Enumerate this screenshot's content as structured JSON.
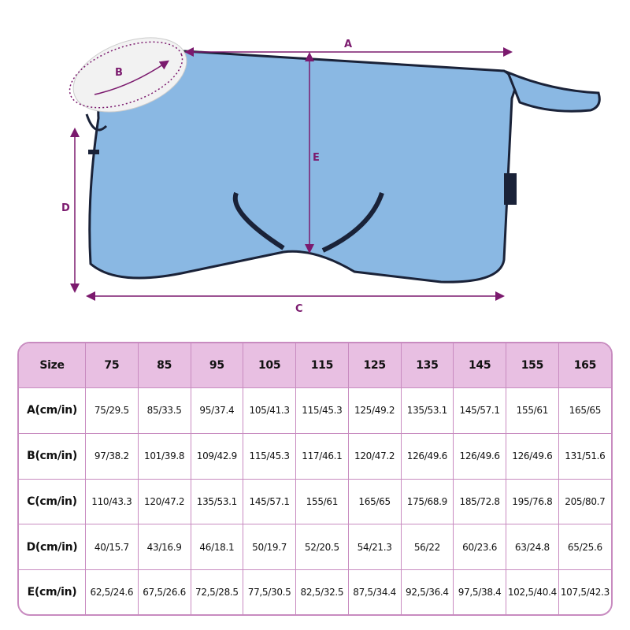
{
  "diagram": {
    "labels": {
      "a": "A",
      "b": "B",
      "c": "C",
      "d": "D",
      "e": "E"
    },
    "colors": {
      "blanket": "#8ab8e3",
      "trim": "#1a2238",
      "fleece": "#f2f2f2",
      "arrow": "#7b1a6e"
    }
  },
  "table": {
    "header": [
      "Size",
      "75",
      "85",
      "95",
      "105",
      "115",
      "125",
      "135",
      "145",
      "155",
      "165"
    ],
    "rows": [
      {
        "label": "A(cm/in)",
        "cells": [
          "75/29.5",
          "85/33.5",
          "95/37.4",
          "105/41.3",
          "115/45.3",
          "125/49.2",
          "135/53.1",
          "145/57.1",
          "155/61",
          "165/65"
        ]
      },
      {
        "label": "B(cm/in)",
        "cells": [
          "97/38.2",
          "101/39.8",
          "109/42.9",
          "115/45.3",
          "117/46.1",
          "120/47.2",
          "126/49.6",
          "126/49.6",
          "126/49.6",
          "131/51.6"
        ]
      },
      {
        "label": "C(cm/in)",
        "cells": [
          "110/43.3",
          "120/47.2",
          "135/53.1",
          "145/57.1",
          "155/61",
          "165/65",
          "175/68.9",
          "185/72.8",
          "195/76.8",
          "205/80.7"
        ]
      },
      {
        "label": "D(cm/in)",
        "cells": [
          "40/15.7",
          "43/16.9",
          "46/18.1",
          "50/19.7",
          "52/20.5",
          "54/21.3",
          "56/22",
          "60/23.6",
          "63/24.8",
          "65/25.6"
        ]
      },
      {
        "label": "E(cm/in)",
        "cells": [
          "62,5/24.6",
          "67,5/26.6",
          "72,5/28.5",
          "77,5/30.5",
          "82,5/32.5",
          "87,5/34.4",
          "92,5/36.4",
          "97,5/38.4",
          "102,5/40.4",
          "107,5/42.3"
        ]
      }
    ],
    "colors": {
      "header_bg": "#e8bfe2",
      "border": "#c88bc0"
    }
  }
}
